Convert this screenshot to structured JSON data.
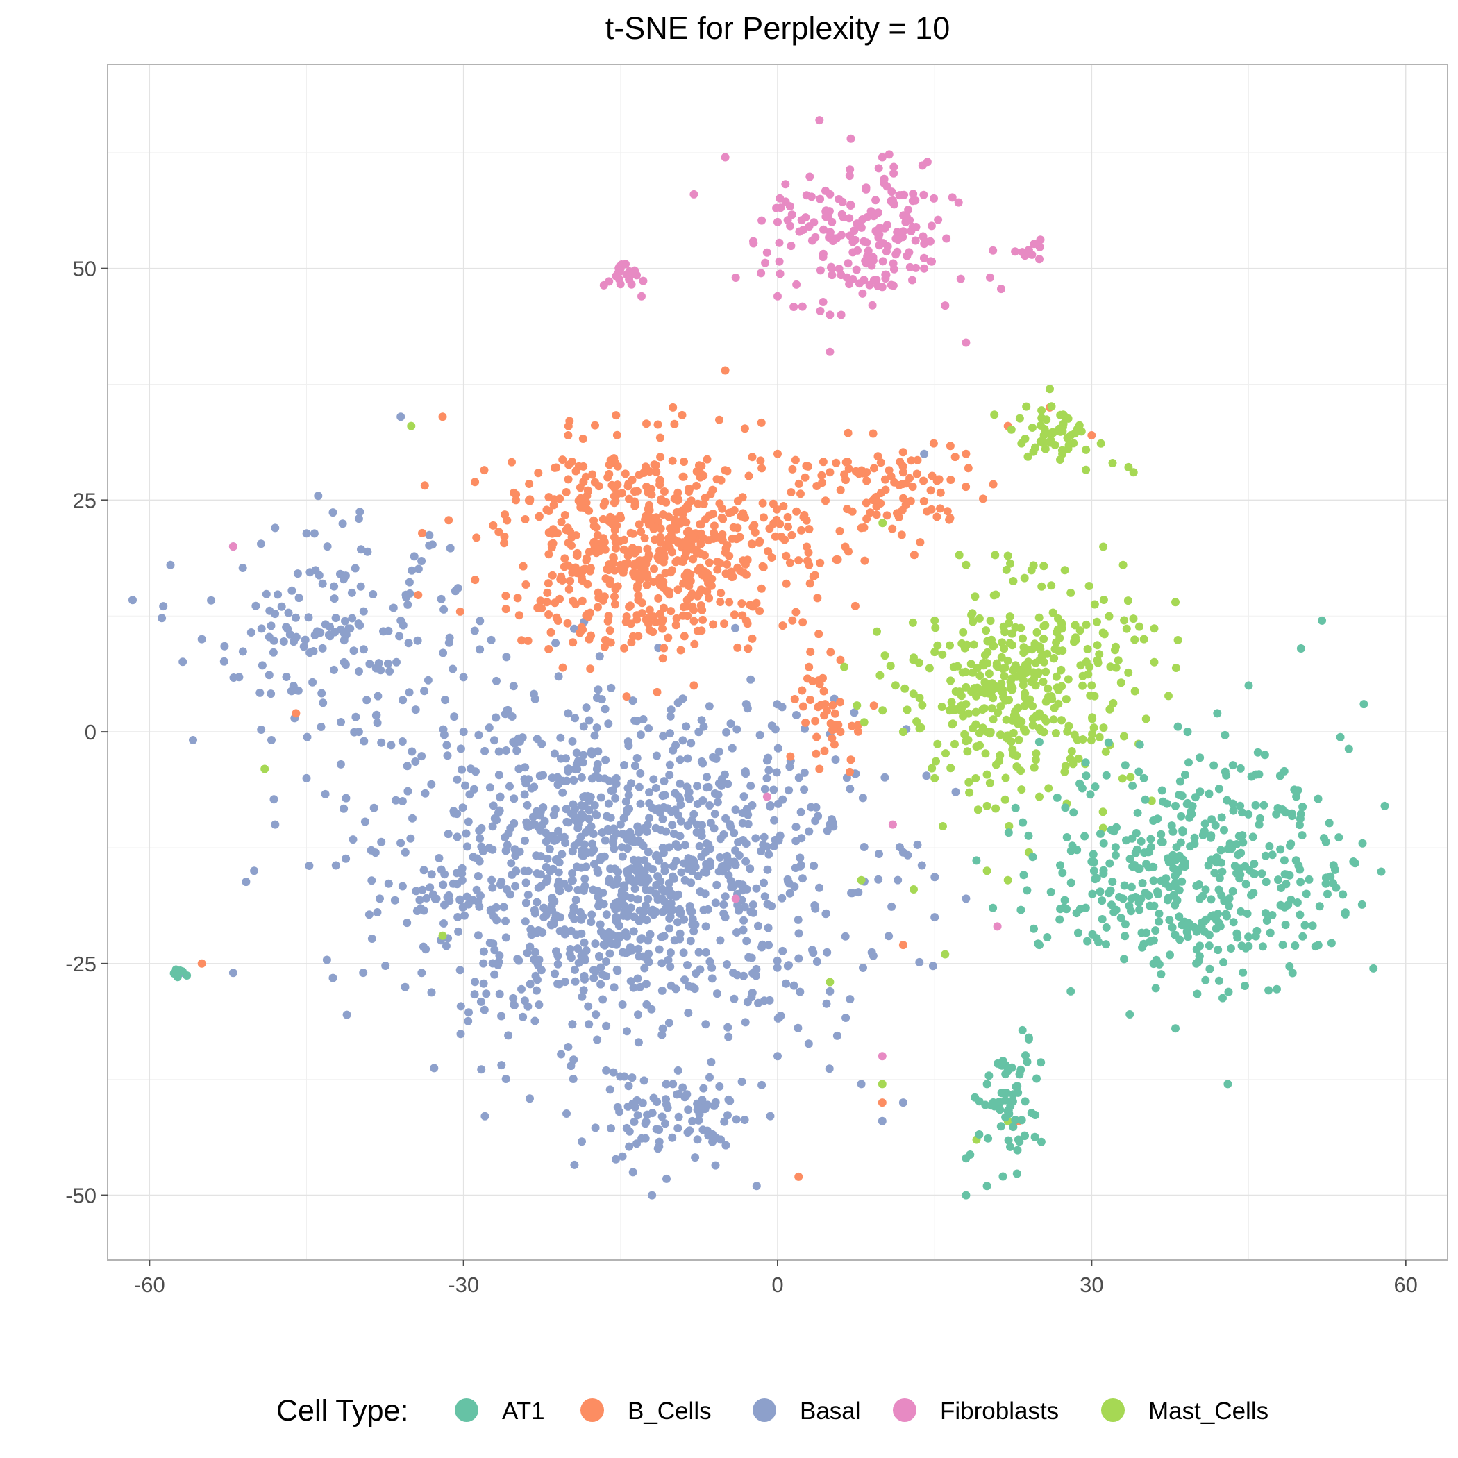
{
  "chart_data": {
    "type": "scatter",
    "title": "t-SNE for Perplexity = 10",
    "xlabel": "",
    "ylabel": "",
    "xlim": [
      -64,
      64
    ],
    "ylim": [
      -57,
      72
    ],
    "x_ticks": [
      -60,
      -30,
      0,
      30,
      60
    ],
    "x_tick_labels": [
      "-60",
      "-30",
      "0",
      "30",
      "60"
    ],
    "y_ticks": [
      -50,
      -25,
      0,
      25,
      50
    ],
    "y_tick_labels": [
      "-50",
      "-25",
      "0",
      "25",
      "50"
    ],
    "grid": true,
    "legend": {
      "title": "Cell Type:",
      "placement": "bottom",
      "entries": [
        "AT1",
        "B_Cells",
        "Basal",
        "Fibroblasts",
        "Mast_Cells"
      ]
    },
    "colors": {
      "AT1": "#66C2A5",
      "B_Cells": "#FC8D62",
      "Basal": "#8DA0CB",
      "Fibroblasts": "#E78AC3",
      "Mast_Cells": "#A6D854"
    },
    "series": [
      {
        "name": "AT1",
        "cluster_summary": [
          {
            "center": [
              40,
              -15
            ],
            "spread": [
              13,
              11
            ],
            "n": 420
          },
          {
            "center": [
              22,
              -40
            ],
            "spread": [
              3,
              6
            ],
            "n": 60
          },
          {
            "center": [
              -57,
              -26
            ],
            "spread": [
              0.8,
              0.6
            ],
            "n": 8
          }
        ],
        "values": [
          [
            52,
            12
          ],
          [
            50,
            9
          ],
          [
            45,
            5
          ],
          [
            56,
            3
          ],
          [
            42,
            2
          ],
          [
            35,
            -5
          ],
          [
            38,
            -8
          ],
          [
            46,
            -10
          ],
          [
            55,
            -14
          ],
          [
            30,
            -14
          ],
          [
            33,
            -18
          ],
          [
            25,
            -23
          ],
          [
            28,
            -28
          ],
          [
            24,
            -33
          ],
          [
            40,
            -25
          ],
          [
            43,
            -38
          ],
          [
            20,
            -38
          ],
          [
            23,
            -44
          ],
          [
            18,
            -46
          ],
          [
            18,
            -50
          ],
          [
            20,
            -49
          ],
          [
            58,
            -8
          ],
          [
            38,
            -32
          ]
        ]
      },
      {
        "name": "B_Cells",
        "cluster_summary": [
          {
            "center": [
              -12,
              20
            ],
            "spread": [
              13,
              10
            ],
            "n": 620
          },
          {
            "center": [
              10,
              26
            ],
            "spread": [
              9,
              5
            ],
            "n": 100
          },
          {
            "center": [
              5,
              2
            ],
            "spread": [
              3,
              6
            ],
            "n": 40
          }
        ],
        "values": [
          [
            -25,
            25
          ],
          [
            -20,
            32
          ],
          [
            -10,
            35
          ],
          [
            -5,
            39
          ],
          [
            0,
            30
          ],
          [
            5,
            28
          ],
          [
            -22,
            15
          ],
          [
            -18,
            10
          ],
          [
            -8,
            5
          ],
          [
            -3,
            12
          ],
          [
            3,
            18
          ],
          [
            8,
            22
          ],
          [
            12,
            28
          ],
          [
            18,
            30
          ],
          [
            22,
            33
          ],
          [
            26,
            35
          ],
          [
            3,
            7
          ],
          [
            6,
            0
          ],
          [
            4,
            -4
          ],
          [
            7,
            -3
          ],
          [
            -32,
            34
          ],
          [
            -46,
            2
          ],
          [
            -55,
            -25
          ],
          [
            12,
            -23
          ],
          [
            2,
            -48
          ],
          [
            23,
            -42
          ],
          [
            10,
            -40
          ],
          [
            30,
            32
          ]
        ]
      },
      {
        "name": "Basal",
        "cluster_summary": [
          {
            "center": [
              -15,
              -15
            ],
            "spread": [
              20,
              16
            ],
            "n": 1150
          },
          {
            "center": [
              -42,
              10
            ],
            "spread": [
              12,
              10
            ],
            "n": 160
          },
          {
            "center": [
              -10,
              -42
            ],
            "spread": [
              8,
              5
            ],
            "n": 90
          }
        ],
        "values": [
          [
            -58,
            18
          ],
          [
            -55,
            10
          ],
          [
            -52,
            20
          ],
          [
            -48,
            22
          ],
          [
            -43,
            20
          ],
          [
            -40,
            23
          ],
          [
            -36,
            12
          ],
          [
            -40,
            0
          ],
          [
            -45,
            -5
          ],
          [
            -48,
            -10
          ],
          [
            -50,
            -15
          ],
          [
            -30,
            0
          ],
          [
            -20,
            2
          ],
          [
            -10,
            -2
          ],
          [
            -38,
            -18
          ],
          [
            -34,
            -26
          ],
          [
            -28,
            -30
          ],
          [
            -20,
            -34
          ],
          [
            -10,
            -38
          ],
          [
            0,
            -35
          ],
          [
            8,
            -38
          ],
          [
            10,
            -42
          ],
          [
            -12,
            -50
          ],
          [
            -2,
            -49
          ],
          [
            5,
            -10
          ],
          [
            12,
            -13
          ],
          [
            15,
            -20
          ],
          [
            -36,
            34
          ],
          [
            -52,
            -26
          ],
          [
            -57,
            -26
          ],
          [
            -3,
            3
          ],
          [
            18,
            -18
          ],
          [
            14,
            30
          ],
          [
            12,
            -40
          ],
          [
            5,
            -28
          ],
          [
            -5,
            -20
          ],
          [
            -15,
            -10
          ],
          [
            -25,
            -15
          ]
        ]
      },
      {
        "name": "Fibroblasts",
        "cluster_summary": [
          {
            "center": [
              8,
              53
            ],
            "spread": [
              8,
              7
            ],
            "n": 190
          },
          {
            "center": [
              -15,
              49
            ],
            "spread": [
              1.5,
              1.5
            ],
            "n": 20
          },
          {
            "center": [
              24,
              52
            ],
            "spread": [
              1,
              1
            ],
            "n": 8
          }
        ],
        "values": [
          [
            4,
            66
          ],
          [
            7,
            64
          ],
          [
            10,
            62
          ],
          [
            -5,
            62
          ],
          [
            -8,
            58
          ],
          [
            0,
            55
          ],
          [
            5,
            58
          ],
          [
            12,
            54
          ],
          [
            14,
            50
          ],
          [
            16,
            46
          ],
          [
            10,
            48
          ],
          [
            5,
            45
          ],
          [
            0,
            47
          ],
          [
            -4,
            49
          ],
          [
            -15,
            50
          ],
          [
            -13,
            47
          ],
          [
            24,
            52
          ],
          [
            25,
            51
          ],
          [
            18,
            42
          ],
          [
            5,
            41
          ],
          [
            -52,
            20
          ],
          [
            -1,
            -7
          ],
          [
            -4,
            -18
          ],
          [
            10,
            -35
          ],
          [
            11,
            -10
          ],
          [
            21,
            -21
          ]
        ]
      },
      {
        "name": "Mast_Cells",
        "cluster_summary": [
          {
            "center": [
              23,
              5
            ],
            "spread": [
              10,
              10
            ],
            "n": 380
          },
          {
            "center": [
              26,
              32
            ],
            "spread": [
              4,
              3
            ],
            "n": 50
          }
        ],
        "values": [
          [
            15,
            12
          ],
          [
            18,
            18
          ],
          [
            22,
            19
          ],
          [
            28,
            15
          ],
          [
            33,
            18
          ],
          [
            38,
            14
          ],
          [
            35,
            10
          ],
          [
            30,
            5
          ],
          [
            25,
            2
          ],
          [
            18,
            3
          ],
          [
            13,
            8
          ],
          [
            12,
            0
          ],
          [
            15,
            -5
          ],
          [
            20,
            -8
          ],
          [
            25,
            -7
          ],
          [
            24,
            -13
          ],
          [
            22,
            -16
          ],
          [
            20,
            -15
          ],
          [
            26,
            37
          ],
          [
            28,
            32
          ],
          [
            32,
            29
          ],
          [
            34,
            28
          ],
          [
            -35,
            33
          ],
          [
            -49,
            -4
          ],
          [
            -32,
            -22
          ],
          [
            8,
            -16
          ],
          [
            5,
            -27
          ],
          [
            10,
            -38
          ],
          [
            19,
            -44
          ],
          [
            22,
            -42
          ],
          [
            16,
            -24
          ],
          [
            13,
            -17
          ]
        ]
      }
    ]
  }
}
